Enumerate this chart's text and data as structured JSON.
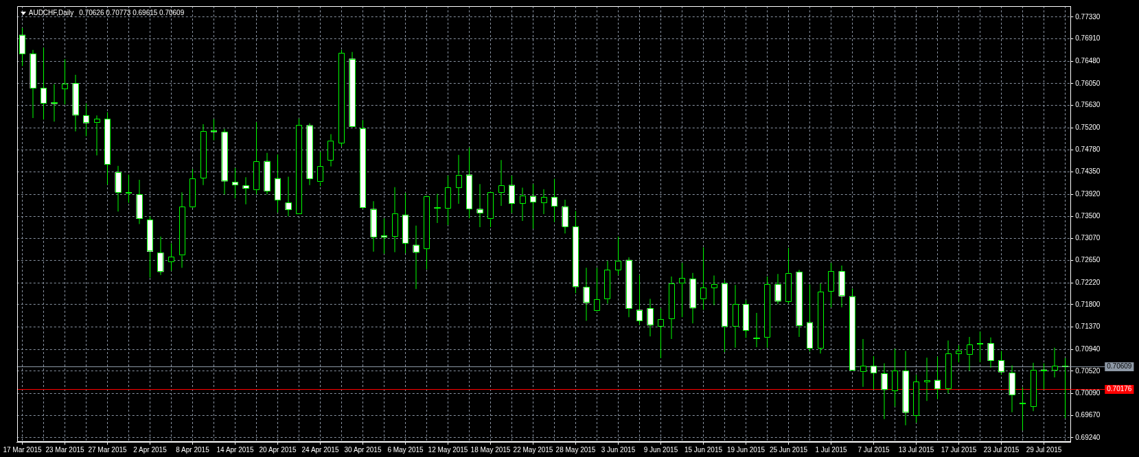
{
  "chart_data": {
    "type": "candlestick",
    "title": "AUDCHF,Daily",
    "subtitle": "0.70626 0.70773 0.69615 0.70609",
    "categories": [
      "17 Mar 2015",
      null,
      null,
      null,
      "23 Mar 2015",
      null,
      null,
      null,
      "27 Mar 2015",
      null,
      null,
      null,
      "2 Apr 2015",
      null,
      null,
      null,
      "8 Apr 2015",
      null,
      null,
      null,
      "14 Apr 2015",
      null,
      null,
      null,
      "20 Apr 2015",
      null,
      null,
      null,
      "24 Apr 2015",
      null,
      null,
      null,
      "30 Apr 2015",
      null,
      null,
      null,
      "6 May 2015",
      null,
      null,
      null,
      "12 May 2015",
      null,
      null,
      null,
      "18 May 2015",
      null,
      null,
      null,
      "22 May 2015",
      null,
      null,
      null,
      "28 May 2015",
      null,
      null,
      null,
      "3 Jun 2015",
      null,
      null,
      null,
      "9 Jun 2015",
      null,
      null,
      null,
      "15 Jun 2015",
      null,
      null,
      null,
      "19 Jun 2015",
      null,
      null,
      null,
      "25 Jun 2015",
      null,
      null,
      null,
      "1 Jul 2015",
      null,
      null,
      null,
      "7 Jul 2015",
      null,
      null,
      null,
      "13 Jul 2015",
      null,
      null,
      null,
      "17 Jul 2015",
      null,
      null,
      null,
      "23 Jul 2015",
      null,
      null,
      null,
      "29 Jul 2015",
      null,
      null
    ],
    "ohlc": [
      [
        0.7699,
        0.7712,
        0.7639,
        0.7662
      ],
      [
        0.7663,
        0.767,
        0.7539,
        0.7596
      ],
      [
        0.7597,
        0.7674,
        0.7536,
        0.7567
      ],
      [
        0.7569,
        0.7604,
        0.7532,
        0.7566
      ],
      [
        0.7594,
        0.7652,
        0.7565,
        0.7605
      ],
      [
        0.7606,
        0.7622,
        0.7513,
        0.7544
      ],
      [
        0.7544,
        0.7567,
        0.7504,
        0.7529
      ],
      [
        0.7529,
        0.7544,
        0.7467,
        0.7537
      ],
      [
        0.7537,
        0.755,
        0.7411,
        0.7449
      ],
      [
        0.7435,
        0.7447,
        0.7359,
        0.7396
      ],
      [
        0.7396,
        0.743,
        0.7376,
        0.7394
      ],
      [
        0.7392,
        0.742,
        0.7335,
        0.7345
      ],
      [
        0.7343,
        0.735,
        0.7232,
        0.7282
      ],
      [
        0.728,
        0.7311,
        0.7237,
        0.7243
      ],
      [
        0.7262,
        0.7298,
        0.7245,
        0.7272
      ],
      [
        0.7274,
        0.7396,
        0.7251,
        0.7368
      ],
      [
        0.7367,
        0.7441,
        0.7366,
        0.7423
      ],
      [
        0.7423,
        0.7527,
        0.741,
        0.7514
      ],
      [
        0.7515,
        0.7537,
        0.7496,
        0.7512
      ],
      [
        0.7512,
        0.7518,
        0.7392,
        0.7417
      ],
      [
        0.7416,
        0.7443,
        0.7384,
        0.741
      ],
      [
        0.7409,
        0.7425,
        0.7373,
        0.7403
      ],
      [
        0.74,
        0.7531,
        0.7392,
        0.7456
      ],
      [
        0.7456,
        0.7472,
        0.7392,
        0.7398
      ],
      [
        0.7423,
        0.7469,
        0.7357,
        0.7381
      ],
      [
        0.7376,
        0.7426,
        0.735,
        0.7362
      ],
      [
        0.7355,
        0.7538,
        0.7354,
        0.7526
      ],
      [
        0.7525,
        0.7529,
        0.741,
        0.7422
      ],
      [
        0.7415,
        0.7474,
        0.7408,
        0.7446
      ],
      [
        0.7458,
        0.7508,
        0.7446,
        0.7496
      ],
      [
        0.749,
        0.767,
        0.7484,
        0.7664
      ],
      [
        0.7653,
        0.7666,
        0.7521,
        0.7522
      ],
      [
        0.7519,
        0.7535,
        0.7364,
        0.7366
      ],
      [
        0.7364,
        0.7379,
        0.7282,
        0.731
      ],
      [
        0.7313,
        0.7346,
        0.7278,
        0.7309
      ],
      [
        0.7311,
        0.7406,
        0.7281,
        0.7356
      ],
      [
        0.7353,
        0.7395,
        0.7279,
        0.7298
      ],
      [
        0.7295,
        0.7332,
        0.721,
        0.728
      ],
      [
        0.7288,
        0.739,
        0.7248,
        0.7389
      ],
      [
        0.7367,
        0.7393,
        0.7337,
        0.7365
      ],
      [
        0.7364,
        0.7428,
        0.7333,
        0.7405
      ],
      [
        0.7405,
        0.7468,
        0.7374,
        0.743
      ],
      [
        0.743,
        0.7482,
        0.7346,
        0.7364
      ],
      [
        0.7364,
        0.7412,
        0.7329,
        0.7356
      ],
      [
        0.7344,
        0.7397,
        0.7329,
        0.7396
      ],
      [
        0.7396,
        0.7458,
        0.737,
        0.741
      ],
      [
        0.741,
        0.7428,
        0.7356,
        0.7374
      ],
      [
        0.7374,
        0.7405,
        0.7341,
        0.739
      ],
      [
        0.7389,
        0.7412,
        0.7326,
        0.7377
      ],
      [
        0.7375,
        0.7402,
        0.7354,
        0.7387
      ],
      [
        0.7387,
        0.7422,
        0.7339,
        0.7369
      ],
      [
        0.7369,
        0.7382,
        0.7317,
        0.733
      ],
      [
        0.733,
        0.736,
        0.7202,
        0.7214
      ],
      [
        0.7214,
        0.7251,
        0.7149,
        0.7183
      ],
      [
        0.7167,
        0.7251,
        0.7166,
        0.719
      ],
      [
        0.719,
        0.7264,
        0.7182,
        0.7247
      ],
      [
        0.7247,
        0.7311,
        0.7237,
        0.7265
      ],
      [
        0.7266,
        0.7271,
        0.7156,
        0.7172
      ],
      [
        0.717,
        0.7237,
        0.7141,
        0.7149
      ],
      [
        0.7173,
        0.7191,
        0.7119,
        0.714
      ],
      [
        0.7138,
        0.7173,
        0.7077,
        0.7152
      ],
      [
        0.7152,
        0.7234,
        0.7114,
        0.7221
      ],
      [
        0.722,
        0.726,
        0.7156,
        0.7231
      ],
      [
        0.723,
        0.7241,
        0.7144,
        0.7173
      ],
      [
        0.719,
        0.729,
        0.717,
        0.7213
      ],
      [
        0.7212,
        0.7236,
        0.7179,
        0.722
      ],
      [
        0.7221,
        0.7227,
        0.7089,
        0.7138
      ],
      [
        0.7137,
        0.7218,
        0.7097,
        0.7181
      ],
      [
        0.7181,
        0.7189,
        0.7116,
        0.713
      ],
      [
        0.7116,
        0.7164,
        0.7098,
        0.7114
      ],
      [
        0.7116,
        0.7234,
        0.7097,
        0.7219
      ],
      [
        0.7219,
        0.7239,
        0.7181,
        0.7186
      ],
      [
        0.7186,
        0.7289,
        0.7182,
        0.7241
      ],
      [
        0.7243,
        0.7247,
        0.7118,
        0.7139
      ],
      [
        0.7146,
        0.7219,
        0.709,
        0.7096
      ],
      [
        0.7096,
        0.7221,
        0.7086,
        0.7205
      ],
      [
        0.7205,
        0.726,
        0.7175,
        0.7244
      ],
      [
        0.7244,
        0.7255,
        0.7175,
        0.7196
      ],
      [
        0.7196,
        0.7211,
        0.7053,
        0.7054
      ],
      [
        0.705,
        0.7114,
        0.7022,
        0.7062
      ],
      [
        0.7062,
        0.7081,
        0.7017,
        0.7048
      ],
      [
        0.7048,
        0.7067,
        0.696,
        0.7016
      ],
      [
        0.7014,
        0.7095,
        0.6984,
        0.7053
      ],
      [
        0.7053,
        0.7091,
        0.6948,
        0.6972
      ],
      [
        0.6966,
        0.7045,
        0.6953,
        0.7032
      ],
      [
        0.7031,
        0.7078,
        0.6995,
        0.7035
      ],
      [
        0.7035,
        0.708,
        0.6998,
        0.7018
      ],
      [
        0.7018,
        0.7111,
        0.7009,
        0.7086
      ],
      [
        0.7086,
        0.7102,
        0.7069,
        0.7092
      ],
      [
        0.7083,
        0.7118,
        0.7053,
        0.7103
      ],
      [
        0.7106,
        0.7128,
        0.7069,
        0.7104
      ],
      [
        0.7106,
        0.7117,
        0.7059,
        0.7072
      ],
      [
        0.7073,
        0.7091,
        0.7045,
        0.705
      ],
      [
        0.7049,
        0.7063,
        0.6973,
        0.7006
      ],
      [
        0.6991,
        0.7021,
        0.6938,
        0.6989
      ],
      [
        0.6984,
        0.7068,
        0.6975,
        0.7055
      ],
      [
        0.7055,
        0.7067,
        0.7017,
        0.7053
      ],
      [
        0.7053,
        0.7097,
        0.704,
        0.7062
      ],
      [
        0.70626,
        0.70773,
        0.69615,
        0.70609
      ]
    ],
    "ylim": [
      0.6916,
      0.7754
    ],
    "yticks": [
      {
        "value": 0.6924,
        "label": "0.69240"
      },
      {
        "value": 0.6967,
        "label": "0.69670"
      },
      {
        "value": 0.7009,
        "label": "0.70090"
      },
      {
        "value": 0.7052,
        "label": "0.70520"
      },
      {
        "value": 0.7094,
        "label": "0.70940"
      },
      {
        "value": 0.7137,
        "label": "0.71370"
      },
      {
        "value": 0.718,
        "label": "0.71800"
      },
      {
        "value": 0.7222,
        "label": "0.72220"
      },
      {
        "value": 0.7265,
        "label": "0.72650"
      },
      {
        "value": 0.7307,
        "label": "0.73070"
      },
      {
        "value": 0.735,
        "label": "0.73500"
      },
      {
        "value": 0.7392,
        "label": "0.73920"
      },
      {
        "value": 0.7435,
        "label": "0.74350"
      },
      {
        "value": 0.7478,
        "label": "0.74780"
      },
      {
        "value": 0.752,
        "label": "0.75200"
      },
      {
        "value": 0.7563,
        "label": "0.75630"
      },
      {
        "value": 0.7605,
        "label": "0.76050"
      },
      {
        "value": 0.7648,
        "label": "0.76480"
      },
      {
        "value": 0.7691,
        "label": "0.76910"
      },
      {
        "value": 0.7733,
        "label": "0.77330"
      }
    ],
    "ref_lines": [
      {
        "axis": "y",
        "value": 0.70609,
        "label": "0.70609",
        "color": "#8e99a6"
      },
      {
        "axis": "y",
        "value": 0.70176,
        "label": "0.70176",
        "color": "#ff0000"
      }
    ],
    "grid": true
  }
}
